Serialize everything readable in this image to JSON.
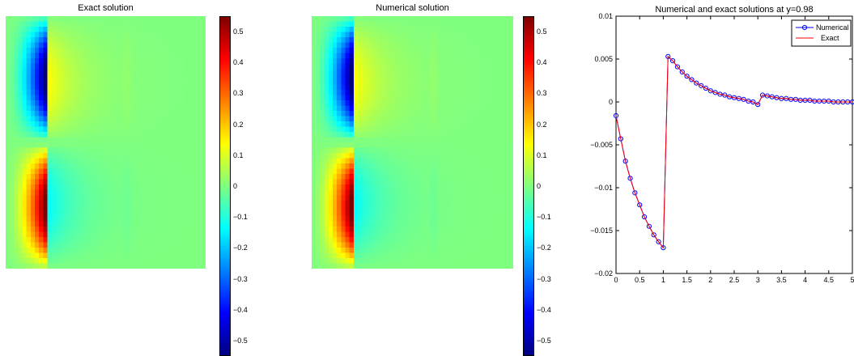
{
  "panels": {
    "exact": {
      "title": "Exact solution"
    },
    "numerical": {
      "title": "Numerical solution"
    }
  },
  "colorbar": {
    "range": [
      -0.55,
      0.55
    ],
    "ticks": [
      "0.5",
      "0.4",
      "0.3",
      "0.2",
      "0.1",
      "0",
      "−0.1",
      "−0.2",
      "−0.3",
      "−0.4",
      "−0.5"
    ],
    "tick_values": [
      0.5,
      0.4,
      0.3,
      0.2,
      0.1,
      0,
      -0.1,
      -0.2,
      -0.3,
      -0.4,
      -0.5
    ],
    "colormap": "jet"
  },
  "chart_data": [
    {
      "type": "heatmap",
      "title": "Exact solution",
      "colormap": "jet",
      "value_range": [
        -0.55,
        0.55
      ]
    },
    {
      "type": "heatmap",
      "title": "Numerical solution",
      "colormap": "jet",
      "value_range": [
        -0.55,
        0.55
      ]
    },
    {
      "type": "line",
      "title": "Numerical and exact solutions at y=0.98",
      "xlim": [
        0,
        5
      ],
      "ylim": [
        -0.02,
        0.01
      ],
      "x_ticks": [
        "0",
        "0.5",
        "1",
        "1.5",
        "2",
        "2.5",
        "3",
        "3.5",
        "4",
        "4.5",
        "5"
      ],
      "y_ticks": [
        "0.01",
        "0.005",
        "0",
        "−0.005",
        "−0.01",
        "−0.015",
        "−0.02"
      ],
      "x": [
        0.0,
        0.1,
        0.2,
        0.3,
        0.4,
        0.5,
        0.6,
        0.7,
        0.8,
        0.9,
        1.0,
        1.1,
        1.2,
        1.3,
        1.4,
        1.5,
        1.6,
        1.7,
        1.8,
        1.9,
        2.0,
        2.1,
        2.2,
        2.3,
        2.4,
        2.5,
        2.6,
        2.7,
        2.8,
        2.9,
        3.0,
        3.1,
        3.2,
        3.3,
        3.4,
        3.5,
        3.6,
        3.7,
        3.8,
        3.9,
        4.0,
        4.1,
        4.2,
        4.3,
        4.4,
        4.5,
        4.6,
        4.7,
        4.8,
        4.9,
        5.0
      ],
      "series": [
        {
          "name": "Numerical",
          "color": "#0000ff",
          "marker": "circle",
          "values": [
            -0.0016,
            -0.0043,
            -0.0069,
            -0.0089,
            -0.0106,
            -0.012,
            -0.0134,
            -0.0145,
            -0.0155,
            -0.0163,
            -0.017,
            0.0053,
            0.0048,
            0.0041,
            0.0035,
            0.003,
            0.0026,
            0.0022,
            0.0019,
            0.0016,
            0.0013,
            0.0011,
            0.0009,
            0.0008,
            0.0006,
            0.0005,
            0.0004,
            0.0003,
            0.0001,
            0.0,
            -0.0003,
            0.0008,
            0.0007,
            0.0006,
            0.0005,
            0.0004,
            0.0004,
            0.0003,
            0.0003,
            0.0002,
            0.0002,
            0.0002,
            0.0001,
            0.0001,
            0.0001,
            0.0001,
            0.0,
            0.0,
            0.0,
            0.0,
            0.0
          ]
        },
        {
          "name": "Exact",
          "color": "#ff0000",
          "values": [
            -0.0016,
            -0.0043,
            -0.0069,
            -0.0089,
            -0.0106,
            -0.012,
            -0.0134,
            -0.0145,
            -0.0155,
            -0.0163,
            -0.017,
            0.0053,
            0.0048,
            0.0041,
            0.0035,
            0.003,
            0.0026,
            0.0022,
            0.0019,
            0.0016,
            0.0013,
            0.0011,
            0.0009,
            0.0008,
            0.0006,
            0.0005,
            0.0004,
            0.0003,
            0.0001,
            0.0,
            -0.0003,
            0.0008,
            0.0007,
            0.0006,
            0.0005,
            0.0004,
            0.0004,
            0.0003,
            0.0003,
            0.0002,
            0.0002,
            0.0002,
            0.0001,
            0.0001,
            0.0001,
            0.0001,
            0.0,
            0.0,
            0.0,
            0.0,
            0.0
          ]
        }
      ],
      "legend": {
        "position": "top-right",
        "entries": [
          "Numerical",
          "Exact"
        ]
      },
      "grid": false
    }
  ]
}
